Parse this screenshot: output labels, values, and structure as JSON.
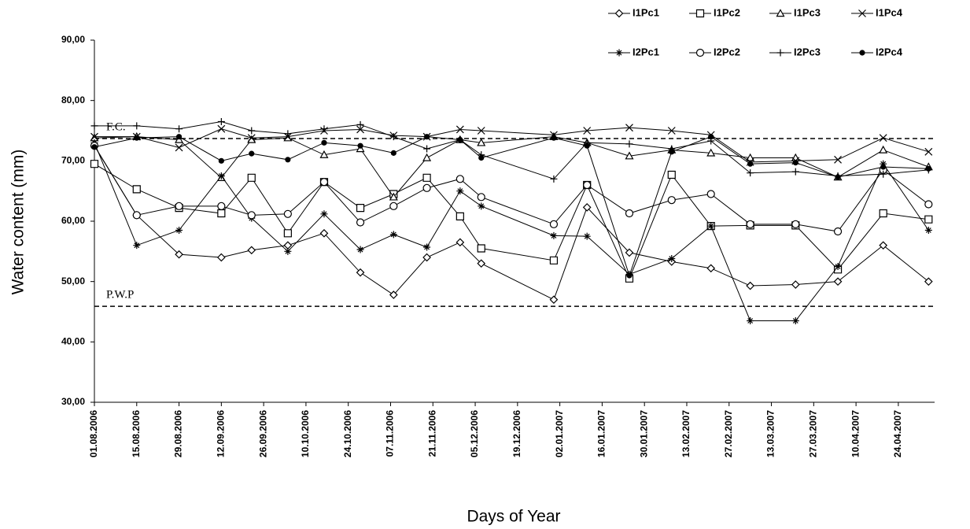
{
  "chart_data": {
    "type": "line",
    "x_label": "Days of Year",
    "y_label": "Water content (mm)",
    "x": [
      "01.08.2006",
      "15.08.2006",
      "29.08.2006",
      "12.09.2006",
      "22.09.2006",
      "04.10.2006",
      "16.10.2006",
      "28.10.2006",
      "08.11.2006",
      "19.11.2006",
      "30.11.2006",
      "07.12.2006",
      "31.12.2006",
      "11.01.2007",
      "25.01.2007",
      "08.02.2007",
      "21.02.2007",
      "06.03.2007",
      "21.03.2007",
      "04.04.2007",
      "19.04.2007",
      "04.05.2007"
    ],
    "xlim": [
      "01.08.2006",
      "06.05.2007"
    ],
    "xticks": [
      "01.08.2006",
      "15.08.2006",
      "29.08.2006",
      "12.09.2006",
      "26.09.2006",
      "10.10.2006",
      "24.10.2006",
      "07.11.2006",
      "21.11.2006",
      "05.12.2006",
      "19.12.2006",
      "02.01.2007",
      "16.01.2007",
      "30.01.2007",
      "13.02.2007",
      "27.02.2007",
      "13.03.2007",
      "27.03.2007",
      "10.04.2007",
      "24.04.2007"
    ],
    "ylim": [
      30,
      90
    ],
    "yticks": [
      {
        "value": 30,
        "label": "30,00"
      },
      {
        "value": 40,
        "label": "40,00"
      },
      {
        "value": 50,
        "label": "50,00"
      },
      {
        "value": 60,
        "label": "60,00"
      },
      {
        "value": 70,
        "label": "70,00"
      },
      {
        "value": 80,
        "label": "80,00"
      },
      {
        "value": 90,
        "label": "90,00"
      }
    ],
    "grid": false,
    "legend": "top-right",
    "reference_lines": [
      {
        "label": "F.C.",
        "value": 73.7
      },
      {
        "label": "P.W.P",
        "value": 45.9
      }
    ],
    "series": [
      {
        "name": "I1Pc1",
        "color": "#000000",
        "marker": "diamond",
        "values": [
          72.5,
          61,
          54.5,
          54,
          55.2,
          56,
          58,
          51.5,
          47.8,
          54,
          56.5,
          53,
          47,
          62.3,
          54.8,
          53.3,
          52.2,
          49.3,
          49.5,
          50,
          56,
          50
        ]
      },
      {
        "name": "I1Pc2",
        "color": "#000000",
        "marker": "square",
        "values": [
          69.5,
          65.3,
          62.2,
          61.3,
          67.2,
          58,
          66.5,
          62.2,
          64.5,
          67.2,
          60.8,
          55.5,
          53.5,
          66,
          50.5,
          67.7,
          59.2,
          59.3,
          59.3,
          52,
          61.3,
          60.3
        ]
      },
      {
        "name": "I1Pc3",
        "color": "#000000",
        "marker": "triangle",
        "values": [
          73.8,
          74,
          73.5,
          67.2,
          73.5,
          73.8,
          71,
          72,
          64,
          70.5,
          73.5,
          73,
          74,
          73,
          70.8,
          71.8,
          71.3,
          70.5,
          70.5,
          67.3,
          71.8,
          69
        ]
      },
      {
        "name": "I1Pc4",
        "color": "#000000",
        "marker": "x",
        "values": [
          74,
          74,
          72.2,
          75.3,
          73.8,
          74,
          75,
          75.2,
          74.2,
          74,
          75.2,
          75,
          74.3,
          75,
          75.5,
          75,
          74.3,
          69.8,
          70,
          70.2,
          73.8,
          71.5
        ]
      },
      {
        "name": "I2Pc1",
        "color": "#000000",
        "marker": "star",
        "values": [
          73,
          56,
          58.5,
          67.5,
          60.5,
          55,
          61.2,
          55.3,
          57.8,
          55.7,
          65,
          62.5,
          57.6,
          57.5,
          51.2,
          53.8,
          59.2,
          43.5,
          43.5,
          52.5,
          69.5,
          58.5
        ]
      },
      {
        "name": "I2Pc2",
        "color": "#000000",
        "marker": "circle",
        "values": [
          72.5,
          61,
          62.5,
          62.5,
          61,
          61.2,
          66.5,
          59.8,
          62.5,
          65.5,
          67,
          64,
          59.5,
          66,
          61.3,
          63.5,
          64.5,
          59.5,
          59.5,
          58.3,
          68.5,
          62.8
        ]
      },
      {
        "name": "I2Pc3",
        "color": "#000000",
        "marker": "plus",
        "values": [
          75.8,
          75.8,
          75.3,
          76.5,
          75,
          74.5,
          75.3,
          76,
          74,
          72,
          73.5,
          71,
          67,
          73,
          72.8,
          72,
          73.3,
          68,
          68.2,
          67.5,
          67.8,
          68.5
        ]
      },
      {
        "name": "I2Pc4",
        "color": "#000000",
        "marker": "dot",
        "values": [
          72.3,
          73.8,
          74,
          70,
          71.2,
          70.2,
          73,
          72.5,
          71.3,
          74,
          73.5,
          70.5,
          73.8,
          72.5,
          51,
          71.5,
          74,
          69.5,
          69.7,
          67.3,
          69,
          68.7
        ]
      }
    ]
  }
}
